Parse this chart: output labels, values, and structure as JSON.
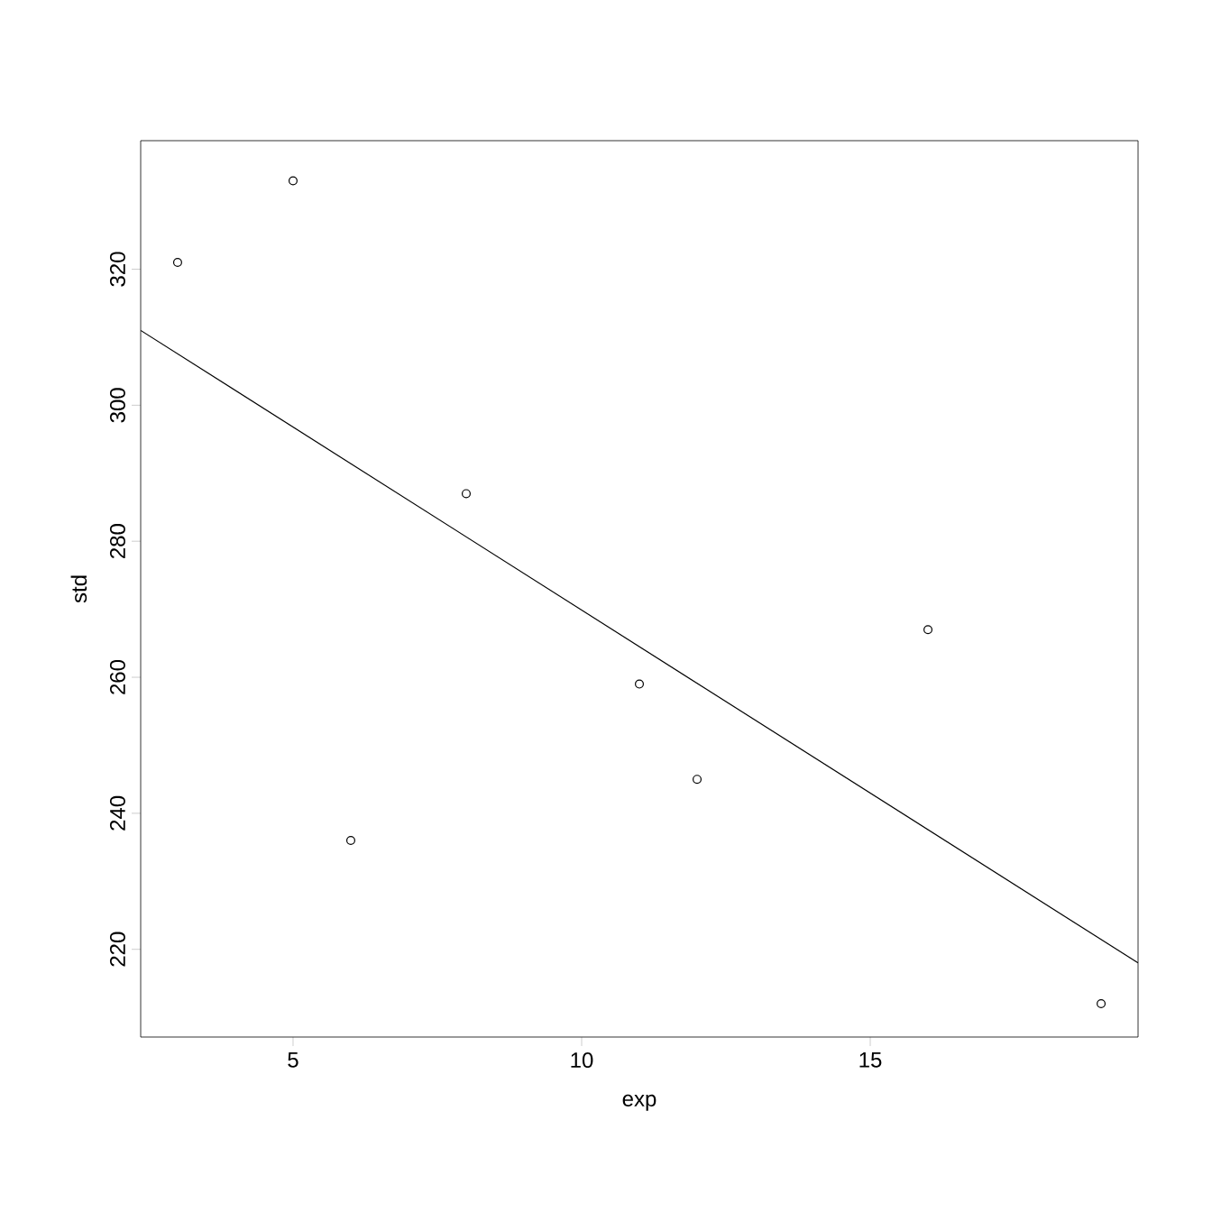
{
  "chart_data": {
    "type": "scatter",
    "xlabel": "exp",
    "ylabel": "std",
    "xlim": [
      2.36,
      19.64
    ],
    "ylim": [
      207.1,
      338.9
    ],
    "xticks": [
      5,
      10,
      15
    ],
    "yticks": [
      220,
      240,
      260,
      280,
      300,
      320
    ],
    "series": [
      {
        "marker": "circle",
        "color": "#000000",
        "x": [
          3,
          5,
          6,
          8,
          11,
          12,
          16,
          19
        ],
        "values": [
          321,
          333,
          236,
          287,
          259,
          245,
          267,
          212
        ]
      },
      {
        "type": "line",
        "marker": "none",
        "color": "#000000",
        "x": [
          2.36,
          19.64
        ],
        "values": [
          311,
          218
        ]
      }
    ]
  }
}
